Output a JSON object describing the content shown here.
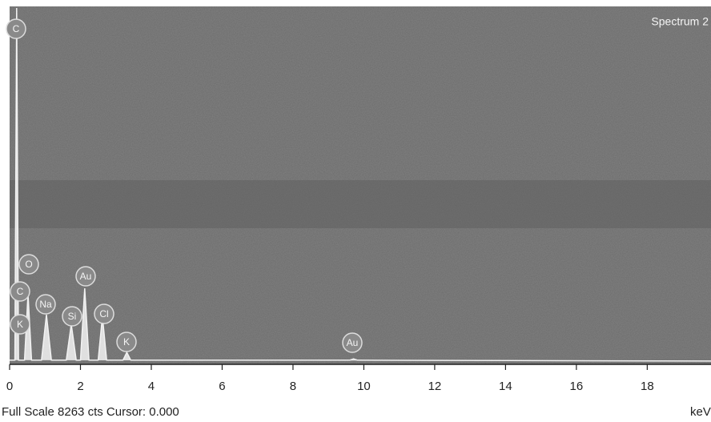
{
  "chart_data": {
    "type": "line",
    "title": "Spectrum 2",
    "x": [
      0,
      0.15,
      0.2,
      0.25,
      0.42,
      0.52,
      0.62,
      0.9,
      1.04,
      1.18,
      1.6,
      1.74,
      1.88,
      2.0,
      2.12,
      2.24,
      2.5,
      2.62,
      2.74,
      3.2,
      3.31,
      3.42,
      9.6,
      9.71,
      9.82,
      19.8
    ],
    "values": [
      60,
      60,
      8263,
      60,
      60,
      1600,
      60,
      60,
      1120,
      60,
      60,
      895,
      60,
      60,
      1735,
      60,
      60,
      1080,
      60,
      60,
      240,
      60,
      60,
      90,
      60,
      40
    ],
    "color": "#f2f2f2",
    "xlim": [
      0,
      19.8
    ],
    "ylim": [
      0,
      8263
    ],
    "xticks": [
      0,
      2,
      4,
      6,
      8,
      10,
      12,
      14,
      16,
      18
    ],
    "x_label": "keV",
    "footer": "Full Scale 8263 cts Cursor: 0.000",
    "annotations": [
      {
        "label": "C",
        "x": 0.2
      },
      {
        "label": "O",
        "x": 0.52
      },
      {
        "label": "C",
        "x": 0.28
      },
      {
        "label": "Na",
        "x": 1.04
      },
      {
        "label": "Au",
        "x": 2.12
      },
      {
        "label": "Si",
        "x": 1.74
      },
      {
        "label": "Cl",
        "x": 2.62
      },
      {
        "label": "K",
        "x": 0.3
      },
      {
        "label": "K",
        "x": 3.31
      },
      {
        "label": "Au",
        "x": 9.71
      }
    ]
  }
}
